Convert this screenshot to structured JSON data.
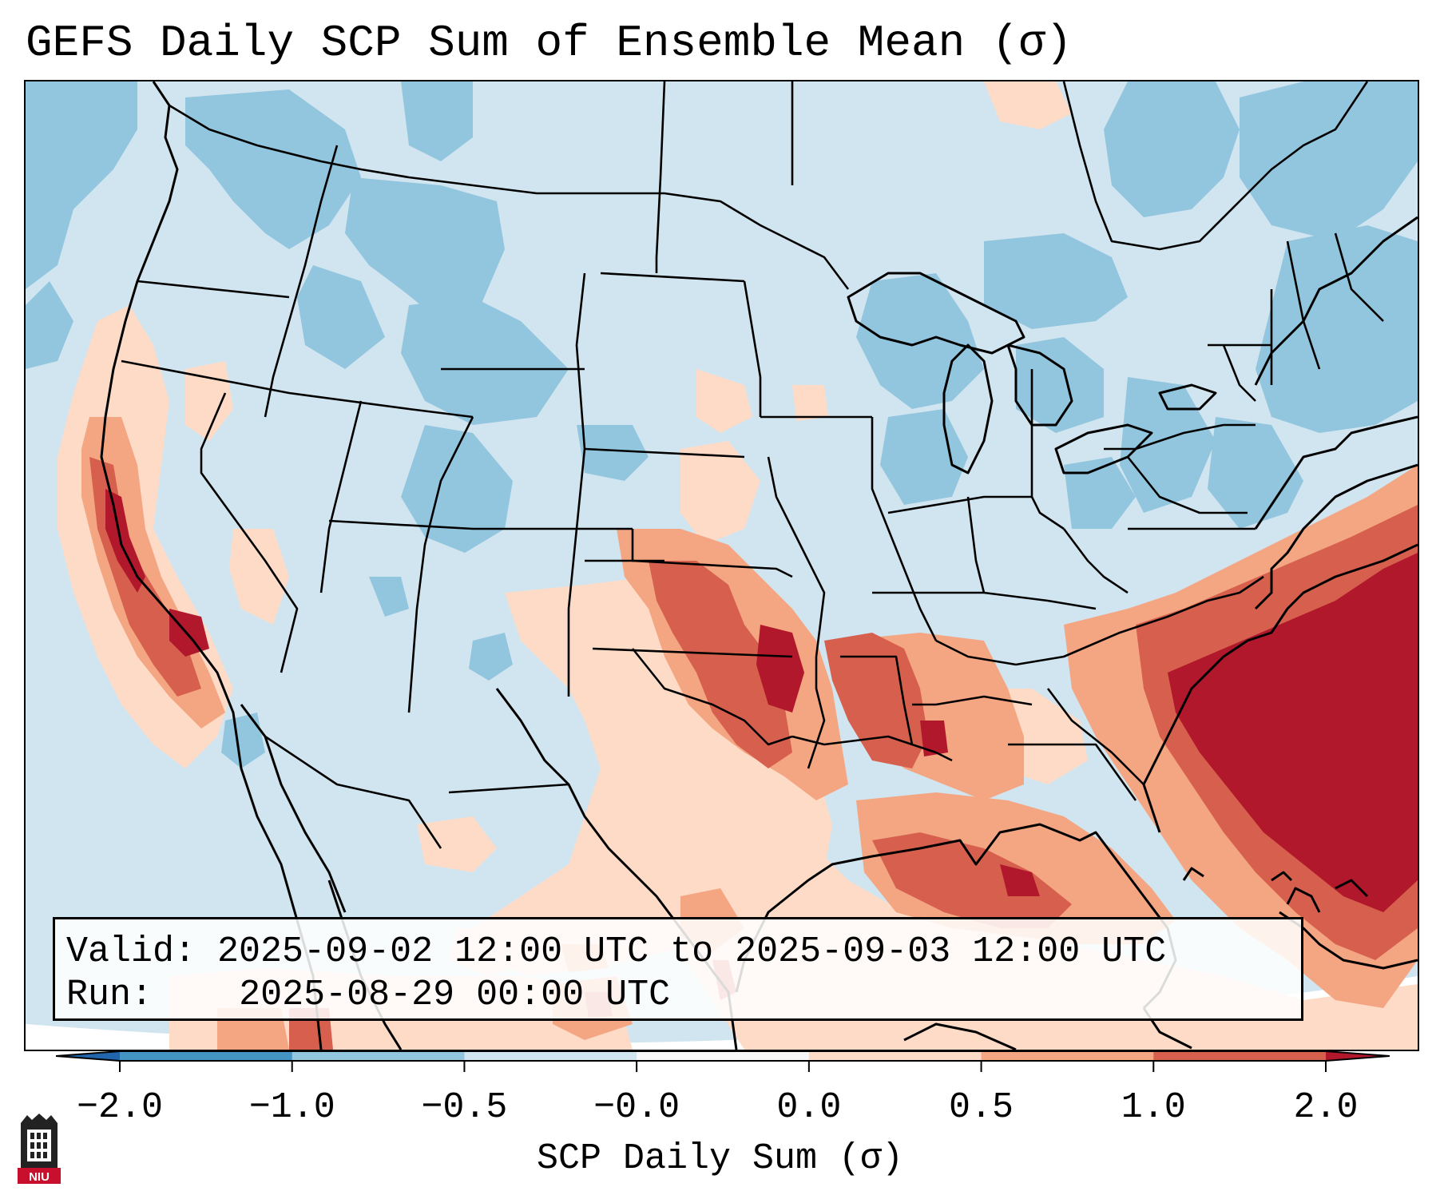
{
  "title": "GEFS Daily SCP Sum of Ensemble Mean (σ)",
  "info": {
    "valid_label": "Valid:",
    "valid_value": "2025-09-02 12:00 UTC to 2025-09-03 12:00 UTC",
    "run_label": "Run:",
    "run_value": "2025-08-29 00:00 UTC"
  },
  "colorbar": {
    "label": "SCP Daily Sum (σ)",
    "ticks": [
      "−2.0",
      "−1.0",
      "−0.5",
      "−0.0",
      "0.0",
      "0.5",
      "1.0",
      "2.0"
    ],
    "bins": [
      {
        "from": -2.0,
        "to": -1.0,
        "color": "#4393c3"
      },
      {
        "from": -1.0,
        "to": -0.5,
        "color": "#92c5de"
      },
      {
        "from": -0.5,
        "to": -0.0,
        "color": "#d1e5f0"
      },
      {
        "from": -0.0,
        "to": 0.0,
        "color": "#f7f7f7"
      },
      {
        "from": 0.0,
        "to": 0.5,
        "color": "#fddbc7"
      },
      {
        "from": 0.5,
        "to": 1.0,
        "color": "#f4a582"
      },
      {
        "from": 1.0,
        "to": 2.0,
        "color": "#d6604d"
      }
    ],
    "under_color": "#2166ac",
    "over_color": "#b2182b"
  },
  "logo": {
    "text": "NIU",
    "color": "#c8102e"
  }
}
